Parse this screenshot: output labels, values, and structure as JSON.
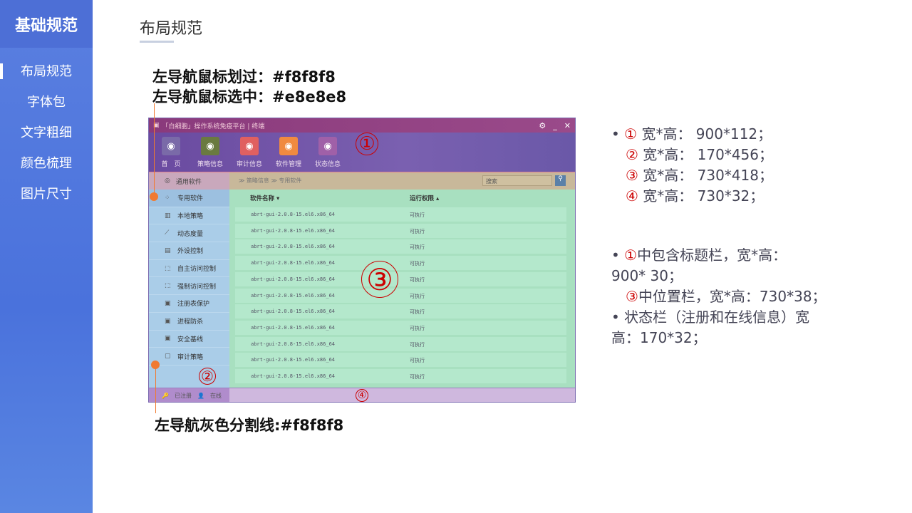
{
  "sidebar": {
    "brand": "基础规范",
    "items": [
      {
        "label": "布局规范",
        "active": true
      },
      {
        "label": "字体包"
      },
      {
        "label": "文字粗细"
      },
      {
        "label": "颜色梳理"
      },
      {
        "label": "图片尺寸"
      }
    ]
  },
  "page": {
    "title": "布局规范"
  },
  "notes": {
    "hover": "左导航鼠标划过：#f8f8f8",
    "selected": "左导航鼠标选中：#e8e8e8",
    "divider": "左导航灰色分割线:#f8f8f8"
  },
  "mock": {
    "title": "「白细胞」操作系统免疫平台 | 终端",
    "toolbar": [
      {
        "label": "首　页",
        "color": "#7a6aa8",
        "icon": "monitor-icon"
      },
      {
        "label": "策略信息",
        "color": "#6a7a40",
        "icon": "policy-icon"
      },
      {
        "label": "审计信息",
        "color": "#e06060",
        "icon": "audit-icon"
      },
      {
        "label": "软件管理",
        "color": "#f08a40",
        "icon": "disc-icon"
      },
      {
        "label": "状态信息",
        "color": "#a060a8",
        "icon": "status-icon"
      }
    ],
    "nav_top": "通用软件",
    "breadcrumb": "≫ 策略信息 ≫ 专用软件",
    "search_placeholder": "搜索",
    "nav": [
      {
        "label": "专用软件",
        "icon": "grid-icon"
      },
      {
        "label": "本地策略",
        "icon": "chart-icon"
      },
      {
        "label": "动态度量",
        "icon": "line-chart-icon"
      },
      {
        "label": "外设控制",
        "icon": "device-icon"
      },
      {
        "label": "自主访问控制",
        "icon": "cursor-icon"
      },
      {
        "label": "强制访问控制",
        "icon": "lock-cursor-icon"
      },
      {
        "label": "注册表保护",
        "icon": "shield-icon"
      },
      {
        "label": "进程防杀",
        "icon": "shield-icon"
      },
      {
        "label": "安全基线",
        "icon": "square-icon"
      },
      {
        "label": "审计策略",
        "icon": "audit-icon"
      }
    ],
    "columns": [
      "软件名称",
      "运行权限"
    ],
    "rows": [
      [
        "abrt-gui-2.0.8-15.el6.x86_64",
        "可执行"
      ],
      [
        "abrt-gui-2.0.8-15.el6.x86_64",
        "可执行"
      ],
      [
        "abrt-gui-2.0.8-15.el6.x86_64",
        "可执行"
      ],
      [
        "abrt-gui-2.0.8-15.el6.x86_64",
        "可执行"
      ],
      [
        "abrt-gui-2.0.8-15.el6.x86_64",
        "可执行"
      ],
      [
        "abrt-gui-2.0.8-15.el6.x86_64",
        "可执行"
      ],
      [
        "abrt-gui-2.0.8-15.el6.x86_64",
        "可执行"
      ],
      [
        "abrt-gui-2.0.8-15.el6.x86_64",
        "可执行"
      ],
      [
        "abrt-gui-2.0.8-15.el6.x86_64",
        "可执行"
      ],
      [
        "abrt-gui-2.0.8-15.el6.x86_64",
        "可执行"
      ],
      [
        "abrt-gui-2.0.8-15.el6.x86_64",
        "可执行"
      ]
    ],
    "status": {
      "registered": "已注册",
      "online": "在线"
    },
    "markers": [
      "①",
      "②",
      "③",
      "④"
    ]
  },
  "specs": {
    "list1": [
      {
        "n": "①",
        "t": " 宽*高： 900*112；"
      },
      {
        "n": "②",
        "t": " 宽*高： 170*456；"
      },
      {
        "n": "③",
        "t": " 宽*高： 730*418；"
      },
      {
        "n": "④",
        "t": " 宽*高： 730*32；"
      }
    ],
    "l2a_n": "①",
    "l2a": "中包含标题栏，宽*高：",
    "l2a_cont": "900* 30；",
    "l2b_n": "③",
    "l2b": "中位置栏，宽*高：730*38；",
    "l2c": "状态栏（注册和在线信息）宽",
    "l2c_cont": "高：170*32；"
  }
}
